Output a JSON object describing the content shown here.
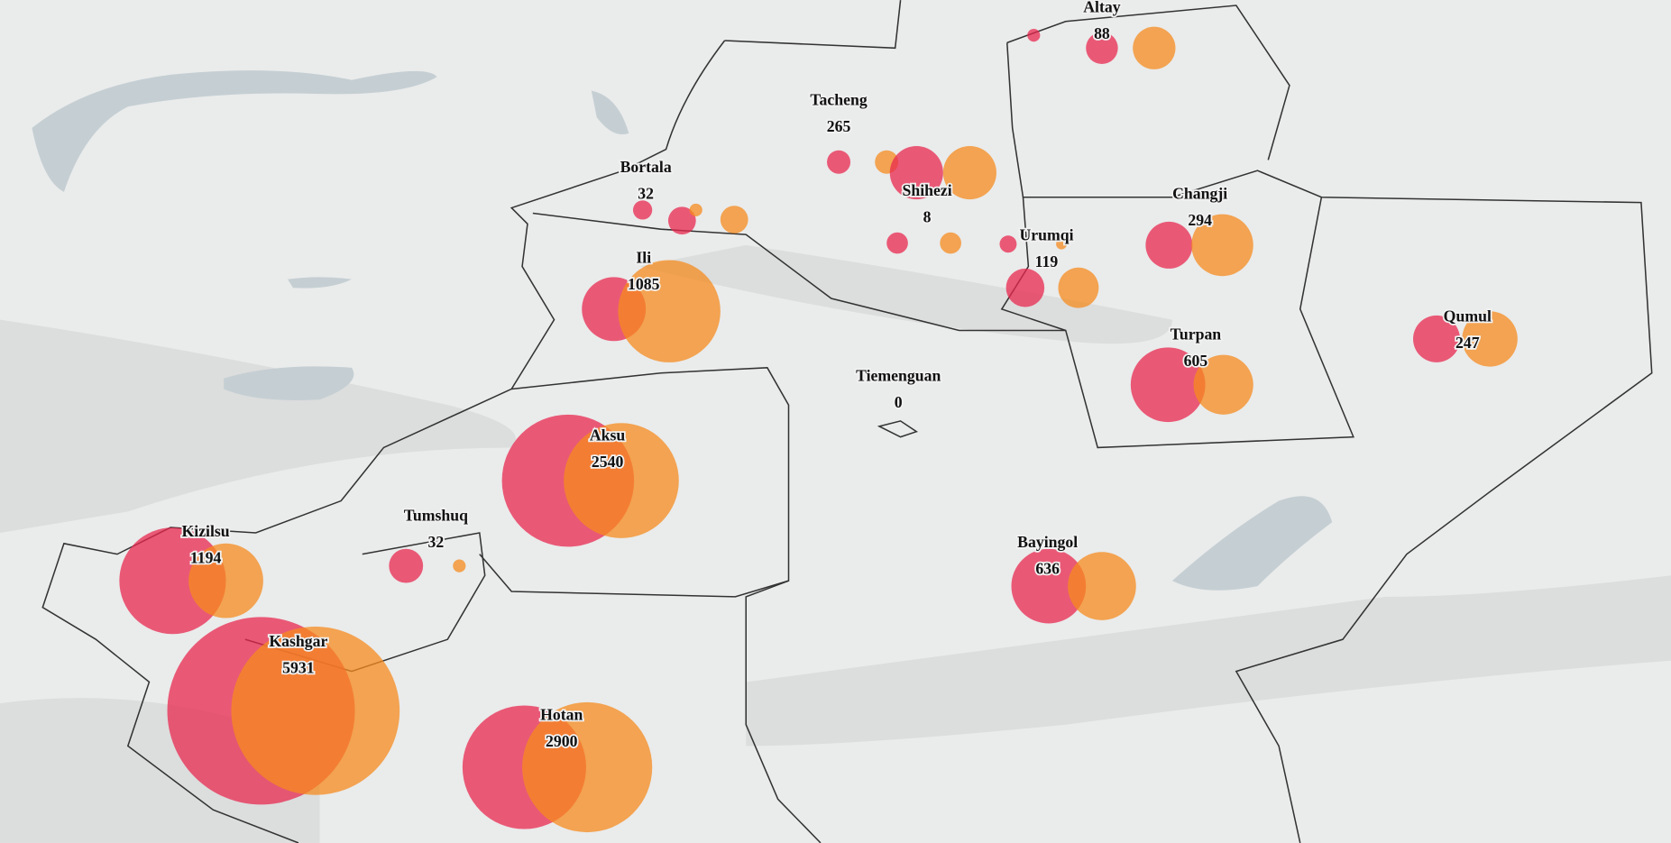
{
  "regions": [
    {
      "name": "Altay",
      "value": 88
    },
    {
      "name": "Tacheng",
      "value": 265
    },
    {
      "name": "Bortala",
      "value": 32
    },
    {
      "name": "Shihezi",
      "value": 8
    },
    {
      "name": "Urumqi",
      "value": 119
    },
    {
      "name": "Changji",
      "value": 294
    },
    {
      "name": "Ili",
      "value": 1085
    },
    {
      "name": "Qumul",
      "value": 247
    },
    {
      "name": "Turpan",
      "value": 605
    },
    {
      "name": "Tiemenguan",
      "value": 0
    },
    {
      "name": "Aksu",
      "value": 2540
    },
    {
      "name": "Tumshuq",
      "value": 32
    },
    {
      "name": "Kizilsu",
      "value": 1194
    },
    {
      "name": "Bayingol",
      "value": 636
    },
    {
      "name": "Kashgar",
      "value": 5931
    },
    {
      "name": "Hotan",
      "value": 2900
    }
  ]
}
